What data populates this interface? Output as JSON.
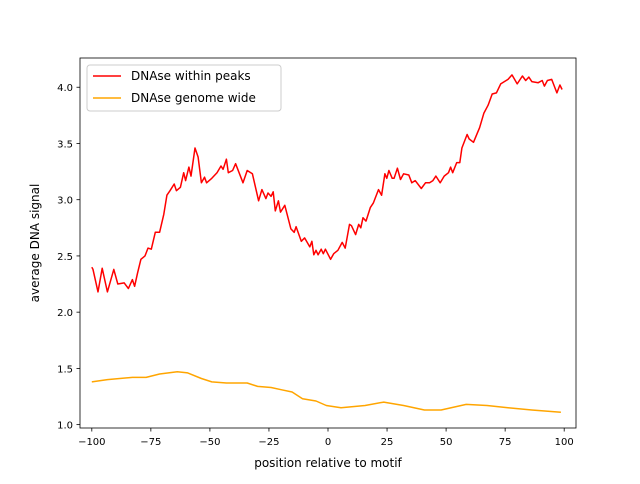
{
  "chart_data": {
    "type": "line",
    "title": "",
    "xlabel": "position relative to motif",
    "ylabel": "average DNA signal",
    "xlim": [
      -105,
      105
    ],
    "ylim": [
      0.97,
      4.26
    ],
    "xticks": [
      -100,
      -75,
      -50,
      -25,
      0,
      25,
      50,
      75,
      100
    ],
    "xtick_labels": [
      "−100",
      "−75",
      "−50",
      "−25",
      "0",
      "25",
      "50",
      "75",
      "100"
    ],
    "yticks": [
      1.0,
      1.5,
      2.0,
      2.5,
      3.0,
      3.5,
      4.0
    ],
    "ytick_labels": [
      "1.0",
      "1.5",
      "2.0",
      "2.5",
      "3.0",
      "3.5",
      "4.0"
    ],
    "grid": false,
    "legend_position": "top-left",
    "series": [
      {
        "name": "DNAse within peaks",
        "color": "#ff0000",
        "x": [
          -100,
          -99.5,
          -97.4,
          -95.6,
          -93.4,
          -90.7,
          -89,
          -86.3,
          -84.5,
          -82.8,
          -81.9,
          -80.6,
          -79.2,
          -77.5,
          -76.2,
          -74.8,
          -73.1,
          -71.3,
          -69.5,
          -68.2,
          -66.9,
          -65.1,
          -64.2,
          -62.5,
          -61.1,
          -60.3,
          -58.9,
          -58,
          -56.3,
          -55,
          -53.6,
          -52.3,
          -51.4,
          -49.2,
          -47,
          -45.3,
          -44.4,
          -43,
          -42.2,
          -40.4,
          -39.1,
          -36,
          -34.2,
          -32,
          -29.4,
          -28,
          -26.3,
          -25.4,
          -24.1,
          -23.2,
          -22.3,
          -21,
          -20.1,
          -18.3,
          -15.7,
          -14.3,
          -13.5,
          -11.3,
          -9.9,
          -7.7,
          -6.8,
          -6,
          -5.1,
          -4.2,
          -2.9,
          -2,
          -1.1,
          1.1,
          2.4,
          4.2,
          6,
          7.3,
          9.1,
          9.9,
          11.7,
          13,
          13.9,
          14.8,
          16.1,
          17.9,
          19.2,
          21.4,
          22.7,
          24.1,
          24.9,
          25.8,
          27.2,
          28,
          29.4,
          30.7,
          32,
          34.2,
          35.5,
          36.9,
          39.5,
          41.3,
          43,
          44.4,
          45.7,
          47.5,
          49.2,
          51,
          51.9,
          52.8,
          54.5,
          55.8,
          56.7,
          58.9,
          59.8,
          61.6,
          63.4,
          64.2,
          66,
          67.8,
          69.5,
          71.3,
          73.1,
          76.2,
          77.9,
          80.1,
          82.3,
          83.7,
          85,
          86.3,
          89,
          90.7,
          91.6,
          92.9,
          94.7,
          96.9,
          98.2,
          99.1
        ],
        "y": [
          2.4,
          2.38,
          2.18,
          2.39,
          2.18,
          2.38,
          2.25,
          2.26,
          2.21,
          2.29,
          2.23,
          2.35,
          2.47,
          2.5,
          2.57,
          2.56,
          2.71,
          2.71,
          2.87,
          3.04,
          3.08,
          3.14,
          3.08,
          3.11,
          3.24,
          3.17,
          3.29,
          3.21,
          3.46,
          3.38,
          3.15,
          3.2,
          3.15,
          3.19,
          3.24,
          3.3,
          3.27,
          3.36,
          3.24,
          3.26,
          3.32,
          3.15,
          3.26,
          3.23,
          2.99,
          3.09,
          3.01,
          3.06,
          3.03,
          3.07,
          2.9,
          2.99,
          2.89,
          2.95,
          2.74,
          2.71,
          2.76,
          2.63,
          2.66,
          2.58,
          2.63,
          2.51,
          2.55,
          2.51,
          2.56,
          2.52,
          2.56,
          2.47,
          2.52,
          2.55,
          2.62,
          2.57,
          2.78,
          2.77,
          2.69,
          2.78,
          2.75,
          2.84,
          2.81,
          2.93,
          2.97,
          3.09,
          3.04,
          3.23,
          3.19,
          3.26,
          3.19,
          3.19,
          3.28,
          3.18,
          3.23,
          3.22,
          3.15,
          3.17,
          3.1,
          3.15,
          3.15,
          3.17,
          3.21,
          3.15,
          3.21,
          3.24,
          3.29,
          3.24,
          3.33,
          3.33,
          3.46,
          3.58,
          3.54,
          3.51,
          3.6,
          3.64,
          3.77,
          3.84,
          3.94,
          3.95,
          4.03,
          4.07,
          4.11,
          4.03,
          4.1,
          4.06,
          4.09,
          4.05,
          4.04,
          4.06,
          4.01,
          4.06,
          4.07,
          3.95,
          4.02,
          3.98
        ]
      },
      {
        "name": "DNAse genome wide",
        "color": "#ffa500",
        "x": [
          -100,
          -93.4,
          -82.8,
          -77,
          -71.3,
          -63.8,
          -59.4,
          -53.6,
          -49.2,
          -43,
          -34.2,
          -29.8,
          -24.1,
          -19.6,
          -15.2,
          -10.8,
          -5.1,
          -0.7,
          5.5,
          15.7,
          23.6,
          32,
          40.8,
          47.9,
          58.5,
          67.3,
          76.2,
          86.3,
          98.6
        ],
        "y": [
          1.38,
          1.4,
          1.42,
          1.42,
          1.45,
          1.47,
          1.46,
          1.41,
          1.38,
          1.37,
          1.37,
          1.34,
          1.33,
          1.31,
          1.29,
          1.23,
          1.21,
          1.17,
          1.15,
          1.17,
          1.2,
          1.17,
          1.13,
          1.13,
          1.18,
          1.17,
          1.15,
          1.13,
          1.11
        ]
      }
    ]
  }
}
